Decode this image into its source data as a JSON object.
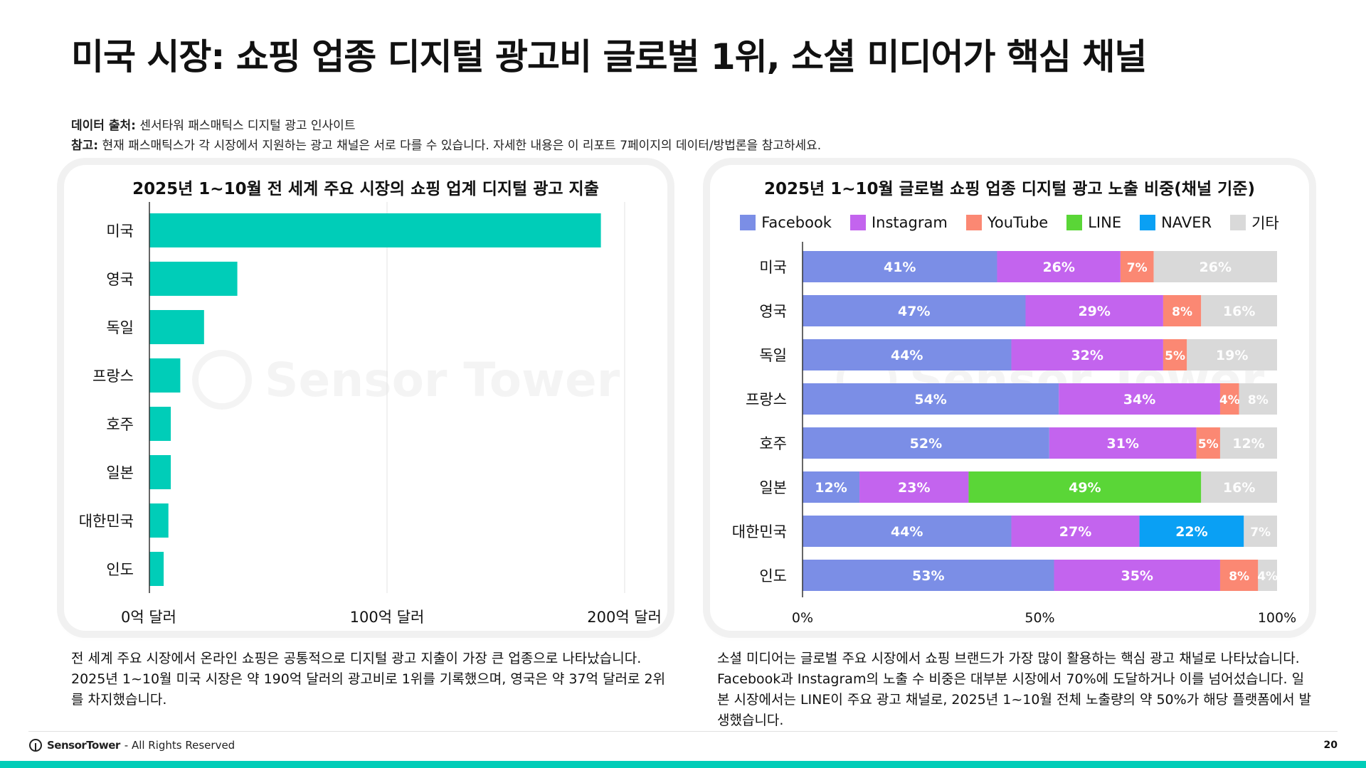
{
  "page": {
    "title": "미국 시장: 쇼핑 업종 디지털 광고비 글로벌 1위, 소셜 미디어가 핵심 채널",
    "source_label": "데이터 출처:",
    "source_text": "센서타워 패스매틱스 디지털 광고 인사이트",
    "note_label": "참고:",
    "note_text": "현재 패스매틱스가 각 시장에서 지원하는 광고 채널은 서로 다를 수 있습니다. 자세한 내용은 이 리포트 7페이지의 데이터/방법론을 참고하세요.",
    "watermark": "Sensor Tower",
    "left_description": "전 세계 주요 시장에서 온라인 쇼핑은 공통적으로 디지털 광고 지출이 가장 큰 업종으로 나타났습니다. 2025년 1~10월 미국 시장은 약 190억 달러의 광고비로 1위를 기록했으며, 영국은 약 37억 달러로 2위를 차지했습니다.",
    "right_description": "소셜 미디어는 글로벌 주요 시장에서 쇼핑 브랜드가 가장 많이 활용하는 핵심 광고 채널로 나타났습니다. Facebook과 Instagram의 노출 수 비중은 대부분 시장에서 70%에 도달하거나 이를 넘어섰습니다. 일본 시장에서는 LINE이 주요 광고 채널로, 2025년 1~10월 전체 노출량의 약 50%가 해당 플랫폼에서 발생했습니다.",
    "footer_brand": "SensorTower",
    "footer_rights": "- All Rights Reserved",
    "page_number": "20"
  },
  "chart_data": [
    {
      "type": "bar",
      "orientation": "horizontal",
      "title": "2025년 1~10월 전 세계 주요 시장의 쇼핑 업계 디지털 광고 지출",
      "categories": [
        "미국",
        "영국",
        "독일",
        "프랑스",
        "호주",
        "일본",
        "대한민국",
        "인도"
      ],
      "values": [
        190,
        37,
        23,
        13,
        9,
        9,
        8,
        6
      ],
      "xlim": [
        0,
        200
      ],
      "xticks": [
        0,
        100,
        200
      ],
      "xtick_labels": [
        "0억 달러",
        "100억 달러",
        "200억 달러"
      ],
      "grid": true,
      "color": "#00cdb8"
    },
    {
      "type": "bar",
      "orientation": "horizontal",
      "stacked": true,
      "normalized": true,
      "title": "2025년 1~10월 글로벌 쇼핑 업종 디지털 광고 노출 비중(채널 기준)",
      "legend_position": "top",
      "categories": [
        "미국",
        "영국",
        "독일",
        "프랑스",
        "호주",
        "일본",
        "대한민국",
        "인도"
      ],
      "xlim": [
        0,
        100
      ],
      "xtick_labels": [
        "0%",
        "50%",
        "100%"
      ],
      "series": [
        {
          "name": "Facebook",
          "color": "#7b8ee6",
          "values": [
            41,
            47,
            44,
            54,
            52,
            12,
            44,
            53
          ]
        },
        {
          "name": "Instagram",
          "color": "#c364ee",
          "values": [
            26,
            29,
            32,
            34,
            31,
            23,
            27,
            35
          ]
        },
        {
          "name": "YouTube",
          "color": "#fb8873",
          "values": [
            7,
            8,
            5,
            4,
            5,
            0,
            0,
            8
          ]
        },
        {
          "name": "LINE",
          "color": "#5ad637",
          "values": [
            0,
            0,
            0,
            0,
            0,
            49,
            0,
            0
          ]
        },
        {
          "name": "NAVER",
          "color": "#0aa0f4",
          "values": [
            0,
            0,
            0,
            0,
            0,
            0,
            22,
            0
          ]
        },
        {
          "name": "기타",
          "color": "#d9d9d9",
          "values": [
            26,
            16,
            19,
            8,
            12,
            16,
            7,
            4
          ]
        }
      ]
    }
  ]
}
